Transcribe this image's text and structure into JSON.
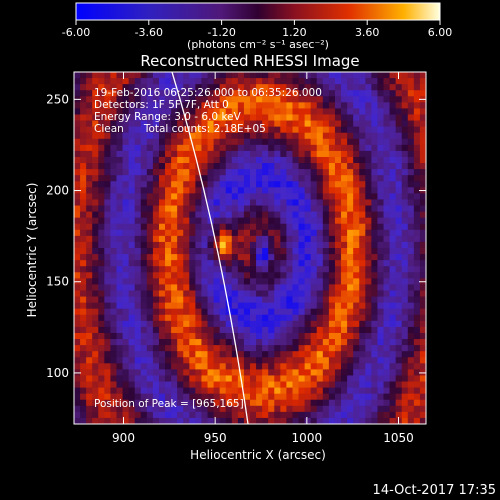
{
  "colorbar": {
    "ticks": [
      "-6.00",
      "-3.60",
      "-1.20",
      "1.20",
      "3.60",
      "6.00"
    ],
    "unit_label": "(photons cm⁻² s⁻¹ asec⁻²)",
    "range": [
      -6.0,
      6.0
    ]
  },
  "chart_data": {
    "type": "heatmap",
    "title": "Reconstructed RHESSI Image",
    "xlabel": "Heliocentric X (arcsec)",
    "ylabel": "Heliocentric Y (arcsec)",
    "xlim": [
      873,
      1065
    ],
    "ylim": [
      72,
      265
    ],
    "xticks": [
      "900",
      "950",
      "1000",
      "1050"
    ],
    "yticks": [
      "100",
      "150",
      "200",
      "250"
    ],
    "colormap": "blue-purple-red-yellow-white",
    "info_lines": [
      "19-Feb-2016 06:25:26.000 to 06:35:26.000",
      "Detectors: 1F 5F 7F, Att 0",
      "Energy Range: 3.0 - 6.0 keV",
      "Clean      Total counts: 2.18E+05"
    ],
    "peak_label": "Position of Peak = [965,165]",
    "peak_position": [
      965,
      165
    ],
    "limb_line": "white arc (solar limb)"
  },
  "footer": {
    "timestamp": "14-Oct-2017 17:35"
  }
}
